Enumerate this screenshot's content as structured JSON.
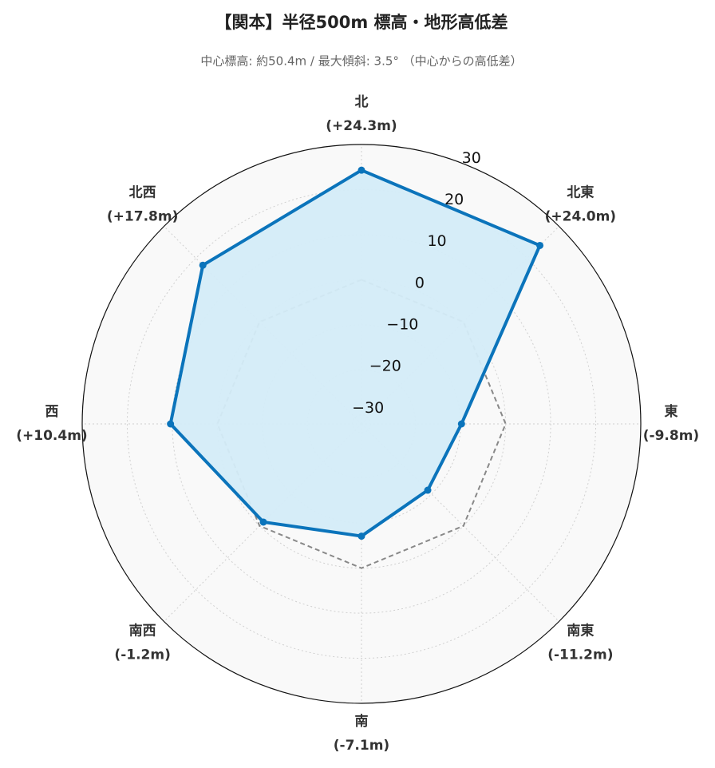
{
  "chart_data": {
    "type": "radar",
    "title": "【関本】半径500m 標高・地形高低差",
    "subtitle": "中心標高: 約50.4m / 最大傾斜: 3.5° （中心からの高低差）",
    "categories": [
      "北",
      "北東",
      "東",
      "南東",
      "南",
      "南西",
      "西",
      "北西"
    ],
    "values": [
      24.3,
      24.0,
      -9.8,
      -11.2,
      -7.1,
      -1.2,
      10.4,
      17.8
    ],
    "value_labels": [
      "(+24.3m)",
      "(+24.0m)",
      "(-9.8m)",
      "(-11.2m)",
      "(-7.1m)",
      "(-1.2m)",
      "(+10.4m)",
      "(+17.8m)"
    ],
    "reference": 0,
    "color": "#0b74bb",
    "fill": "#d4ecf8",
    "ylim": [
      -32,
      30
    ],
    "yticks": [
      {
        "value": -30,
        "label": "−30"
      },
      {
        "value": -20,
        "label": "−20"
      },
      {
        "value": -10,
        "label": "−10"
      },
      0,
      10,
      20,
      30
    ],
    "grid": true
  }
}
